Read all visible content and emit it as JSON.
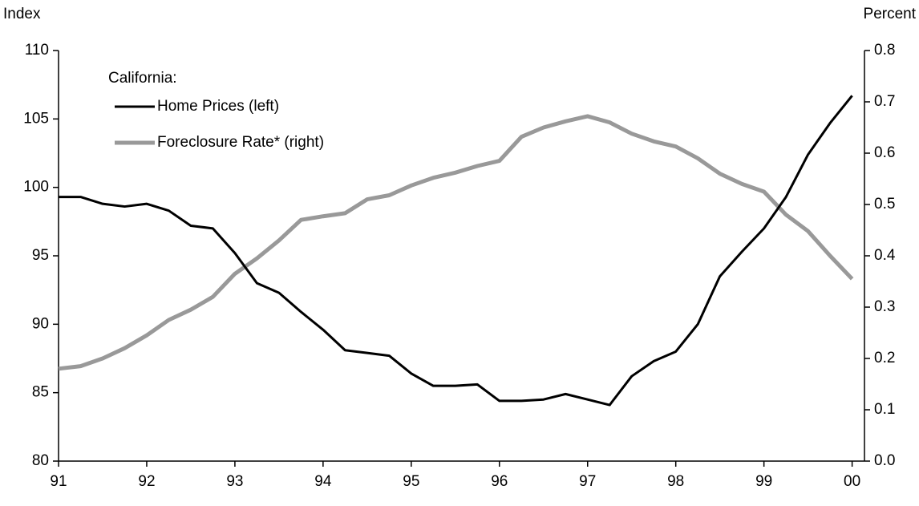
{
  "chart_data": {
    "type": "line",
    "y_label": "Index",
    "y2_label": "Percent",
    "legend_title": "California:",
    "x": [
      91,
      91.25,
      91.5,
      91.75,
      92,
      92.25,
      92.5,
      92.75,
      93,
      93.25,
      93.5,
      93.75,
      94,
      94.25,
      94.5,
      94.75,
      95,
      95.25,
      95.5,
      95.75,
      96,
      96.25,
      96.5,
      96.75,
      97,
      97.25,
      97.5,
      97.75,
      98,
      98.25,
      98.5,
      98.75,
      99,
      99.25,
      99.5,
      99.75,
      100
    ],
    "series": [
      {
        "name": "Home Prices (left)",
        "color": "#000000",
        "values": [
          99.3,
          99.3,
          98.8,
          98.6,
          98.8,
          98.3,
          97.2,
          97.0,
          95.2,
          93.0,
          92.3,
          90.9,
          89.6,
          88.1,
          87.9,
          87.7,
          86.4,
          85.5,
          85.5,
          85.6,
          84.4,
          84.4,
          84.5,
          84.9,
          84.5,
          84.1,
          86.2,
          87.3,
          88.0,
          90.0,
          93.5,
          95.3,
          97.0,
          99.3,
          102.4,
          104.7,
          106.7
        ]
      },
      {
        "name": "Foreclosure Rate* (right)",
        "color": "#999999",
        "axis": "y2",
        "values": [
          0.18,
          0.185,
          0.2,
          0.22,
          0.245,
          0.275,
          0.295,
          0.32,
          0.365,
          0.395,
          0.43,
          0.47,
          0.477,
          0.483,
          0.51,
          0.518,
          0.537,
          0.552,
          0.562,
          0.575,
          0.585,
          0.632,
          0.65,
          0.662,
          0.672,
          0.66,
          0.638,
          0.623,
          0.613,
          0.59,
          0.56,
          0.54,
          0.525,
          0.48,
          0.448,
          0.4,
          0.355
        ]
      }
    ],
    "xlim": [
      91,
      100.14
    ],
    "xticks": [
      91,
      92,
      93,
      94,
      95,
      96,
      97,
      98,
      99,
      {
        "value": 100,
        "label": "00"
      }
    ],
    "ylim": [
      80,
      110
    ],
    "yticks": [
      80,
      85,
      90,
      95,
      100,
      105,
      110
    ],
    "y2lim": [
      0,
      0.8
    ],
    "y2ticks": [
      {
        "value": 0,
        "label": "0.0"
      },
      0.1,
      0.2,
      0.3,
      0.4,
      0.5,
      0.6,
      0.7,
      0.8
    ],
    "grid": false,
    "legend": "upper left"
  }
}
